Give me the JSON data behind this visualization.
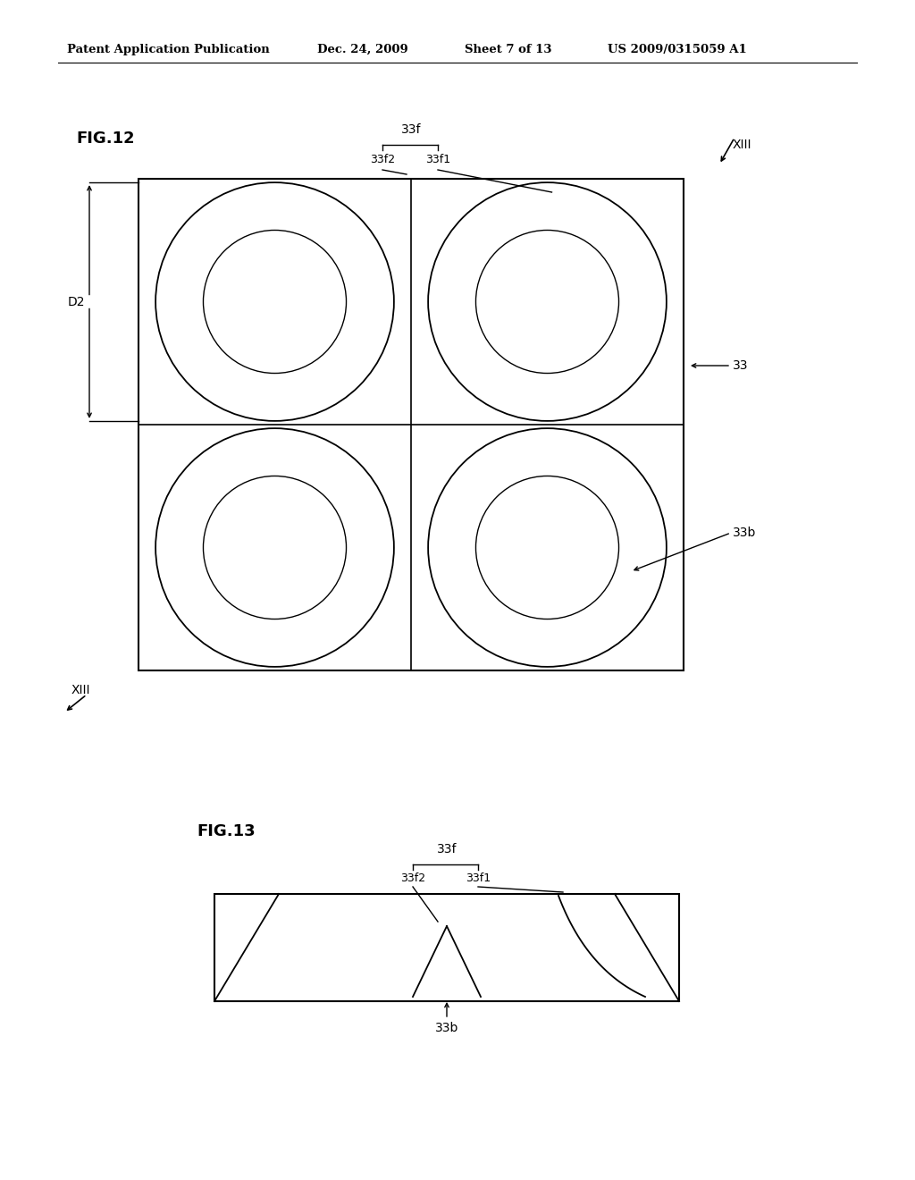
{
  "bg_color": "#ffffff",
  "header_text": "Patent Application Publication",
  "header_date": "Dec. 24, 2009",
  "header_sheet": "Sheet 7 of 13",
  "header_patent": "US 2009/0315059 A1",
  "fig12_label": "FIG.12",
  "fig13_label": "FIG.13",
  "label_33f": "33f",
  "label_33f1": "33f1",
  "label_33f2": "33f2",
  "label_33b": "33b",
  "label_33": "33",
  "label_D2": "D2",
  "label_XIII": "XIII",
  "page_width": 10.24,
  "page_height": 13.2
}
